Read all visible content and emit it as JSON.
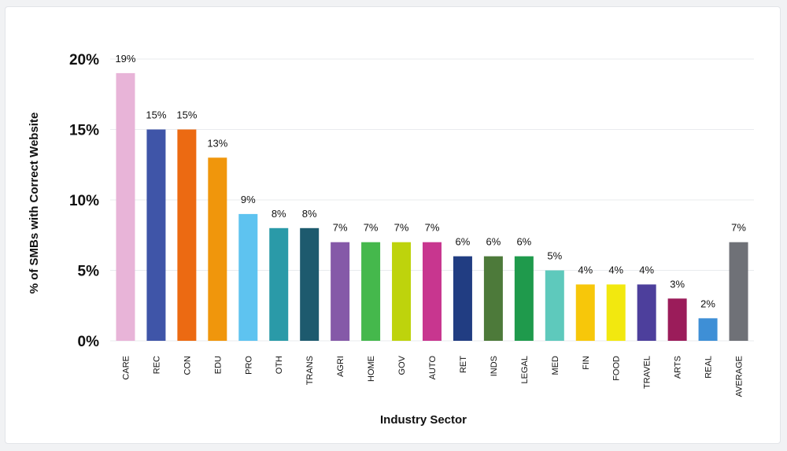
{
  "chart_data": {
    "type": "bar",
    "title": "",
    "xlabel": "Industry Sector",
    "ylabel": "% of SMBs with Correct Website",
    "ylim": [
      0,
      20
    ],
    "yticks": [
      0,
      5,
      10,
      15,
      20
    ],
    "ytick_labels": [
      "0%",
      "5%",
      "10%",
      "15%",
      "20%"
    ],
    "grid": true,
    "legend": "none",
    "categories": [
      "CARE",
      "REC",
      "CON",
      "EDU",
      "PRO",
      "OTH",
      "TRANS",
      "AGRI",
      "HOME",
      "GOV",
      "AUTO",
      "RET",
      "INDS",
      "LEGAL",
      "MED",
      "FIN",
      "FOOD",
      "TRAVEL",
      "ARTS",
      "REAL",
      "AVERAGE"
    ],
    "values": [
      19,
      15,
      15,
      13,
      9,
      8,
      8,
      7,
      7,
      7,
      7,
      6,
      6,
      6,
      5,
      4,
      4,
      4,
      3,
      1.6,
      7
    ],
    "data_labels": [
      "19%",
      "15%",
      "15%",
      "13%",
      "9%",
      "8%",
      "8%",
      "7%",
      "7%",
      "7%",
      "7%",
      "6%",
      "6%",
      "6%",
      "5%",
      "4%",
      "4%",
      "4%",
      "3%",
      "2%",
      "7%"
    ],
    "colors": [
      "#e8b4d8",
      "#3f55a8",
      "#ec6a12",
      "#f0960c",
      "#5ec3f0",
      "#2a9aa8",
      "#1d5a6e",
      "#8559a8",
      "#45b84c",
      "#bed30c",
      "#c8368f",
      "#213d82",
      "#4d7a3a",
      "#1f9a4c",
      "#5ec9bc",
      "#f7c70a",
      "#f2e80f",
      "#4d3f9c",
      "#9b1c5a",
      "#3e8fd6",
      "#6f7177"
    ]
  }
}
